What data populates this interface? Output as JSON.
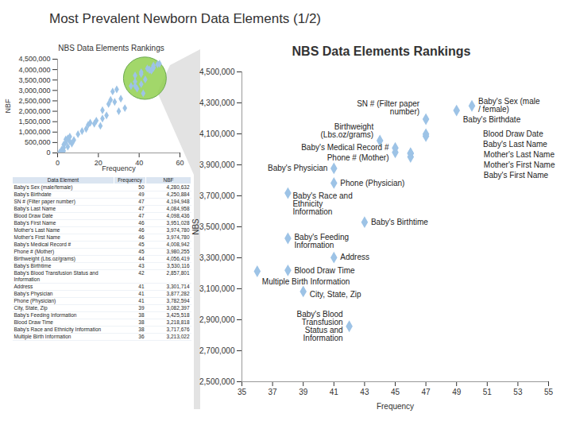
{
  "title": "Most Prevalent Newborn Data Elements (1/2)",
  "chart_data": [
    {
      "type": "scatter",
      "title": "NBS Data Elements Rankings",
      "x_label": "Frequency",
      "y_label": "NBF",
      "x": [
        50,
        49,
        47,
        47,
        47,
        46,
        46,
        46,
        45,
        45,
        44,
        43,
        42,
        41,
        41,
        41,
        39,
        38,
        38,
        38,
        36,
        1,
        2,
        2,
        3,
        3,
        4,
        4,
        5,
        5,
        6,
        6,
        7,
        8,
        1,
        3,
        10,
        12,
        14,
        15,
        16,
        18,
        19,
        21,
        22,
        24,
        22,
        25,
        26,
        28,
        30,
        33,
        27,
        29,
        31
      ],
      "values": [
        4280632,
        4250884,
        4194948,
        4084958,
        4098436,
        3951028,
        3974780,
        3974780,
        4008942,
        3980255,
        4056419,
        3530116,
        2857801,
        3301714,
        3877282,
        3782594,
        3082397,
        3425518,
        3218818,
        3717676,
        3213022,
        20000,
        60000,
        150000,
        250000,
        400000,
        500000,
        650000,
        300000,
        700000,
        550000,
        780000,
        450000,
        620000,
        5000,
        100000,
        900000,
        1050000,
        1150000,
        1350000,
        1450000,
        1400000,
        1550000,
        1300000,
        1650000,
        1800000,
        2050000,
        2350000,
        2550000,
        2450000,
        2000000,
        2150000,
        2950000,
        3050000,
        2600000
      ],
      "xlim": [
        0,
        60
      ],
      "xticks": [
        0,
        20,
        40,
        60
      ],
      "ylim": [
        0,
        4500000
      ],
      "yticks": [
        0,
        {
          "value": 500000,
          "label": "500,000"
        },
        {
          "value": 1000000,
          "label": "1,000,000"
        },
        {
          "value": 1500000,
          "label": "1,500,000"
        },
        {
          "value": 2000000,
          "label": "2,000,000"
        },
        {
          "value": 2500000,
          "label": "2,500,000"
        },
        {
          "value": 3000000,
          "label": "3,000,000"
        },
        {
          "value": 3500000,
          "label": "3,500,000"
        },
        {
          "value": 4000000,
          "label": "4,000,000"
        },
        {
          "value": 4500000,
          "label": "4,500,000"
        }
      ],
      "color": "#9dc3e6",
      "marker": "diamond"
    },
    {
      "type": "scatter",
      "title": "NBS Data Elements Rankings",
      "x_label": "Frequency",
      "y_label": "NBS",
      "x": [
        50,
        49,
        47,
        47,
        47,
        46,
        46,
        46,
        45,
        45,
        44,
        43,
        42,
        41,
        41,
        41,
        39,
        38,
        38,
        38,
        36
      ],
      "values": [
        4280632,
        4250884,
        4194948,
        4084958,
        4098436,
        3951028,
        3974780,
        3974780,
        4008942,
        3980255,
        4056419,
        3530116,
        2857801,
        3301714,
        3877282,
        3782594,
        3082397,
        3425518,
        3218818,
        3717676,
        3213022
      ],
      "labels": [
        "Baby's Sex (male / female)",
        "Baby's Birthdate",
        "SN # (Filter paper number)",
        "Baby's Last Name",
        "Blood Draw Date",
        "Baby's First Name",
        "Mother's Last Name",
        "Mother's First Name",
        "Baby's Medical Record #",
        "Phone # (Mother)",
        "Birthweight (Lbs.oz/grams)",
        "Baby's Birthtime",
        "Baby's Blood Transfusion Status and Information",
        "Address",
        "Baby's Physician",
        "Phone (Physician)",
        "City, State, Zip",
        "Baby's Feeding Information",
        "Blood Draw Time",
        "Baby's Race and Ethnicity Information",
        "Multiple Birth Information"
      ],
      "xlim": [
        35,
        55
      ],
      "xticks": [
        35,
        37,
        39,
        41,
        43,
        45,
        47,
        49,
        51,
        53,
        55
      ],
      "ylim": [
        2500000,
        4500000
      ],
      "yticks": [
        {
          "value": 2500000,
          "label": "2,500,000"
        },
        {
          "value": 2700000,
          "label": "2,700,000"
        },
        {
          "value": 2900000,
          "label": "2,900,000"
        },
        {
          "value": 3100000,
          "label": "3,100,000"
        },
        {
          "value": 3300000,
          "label": "3,300,000"
        },
        {
          "value": 3500000,
          "label": "3,500,000"
        },
        {
          "value": 3700000,
          "label": "3,700,000"
        },
        {
          "value": 3900000,
          "label": "3,900,000"
        },
        {
          "value": 4100000,
          "label": "4,100,000"
        },
        {
          "value": 4300000,
          "label": "4,300,000"
        },
        {
          "value": 4500000,
          "label": "4,500,000"
        }
      ],
      "color": "#9dc3e6",
      "marker": "diamond"
    }
  ],
  "table": {
    "columns": [
      "Data Element",
      "Frequency",
      "NBF"
    ],
    "rows": [
      [
        "Baby's Sex (male/female)",
        "50",
        "4,280,632"
      ],
      [
        "Baby's Birthdate",
        "49",
        "4,250,884"
      ],
      [
        "SN # (Filter paper number)",
        "47",
        "4,194,948"
      ],
      [
        "Baby's Last Name",
        "47",
        "4,084,958"
      ],
      [
        "Blood Draw Date",
        "47",
        "4,098,436"
      ],
      [
        "Baby's First Name",
        "46",
        "3,951,028"
      ],
      [
        "Mother's Last Name",
        "46",
        "3,974,780"
      ],
      [
        "Mother's First Name",
        "46",
        "3,974,780"
      ],
      [
        "Baby's Medical Record #",
        "45",
        "4,008,942"
      ],
      [
        "Phone # (Mother)",
        "45",
        "3,980,255"
      ],
      [
        "Birthweight (Lbs.oz/grams)",
        "44",
        "4,056,419"
      ],
      [
        "Baby's Birthtime",
        "43",
        "3,530,116"
      ],
      [
        "Baby's Blood Transfusion Status and Information",
        "42",
        "2,857,801"
      ],
      [
        "Address",
        "41",
        "3,301,714"
      ],
      [
        "Baby's Physician",
        "41",
        "3,877,282"
      ],
      [
        "Phone (Physician)",
        "41",
        "3,782,594"
      ],
      [
        "City, State, Zip",
        "39",
        "3,082,397"
      ],
      [
        "Baby's Feeding Information",
        "38",
        "3,425,518"
      ],
      [
        "Blood Draw Time",
        "38",
        "3,218,818"
      ],
      [
        "Baby's Race and Ethnicity Information",
        "38",
        "3,717,676"
      ],
      [
        "Multiple Birth Information",
        "36",
        "3,213,022"
      ]
    ]
  }
}
